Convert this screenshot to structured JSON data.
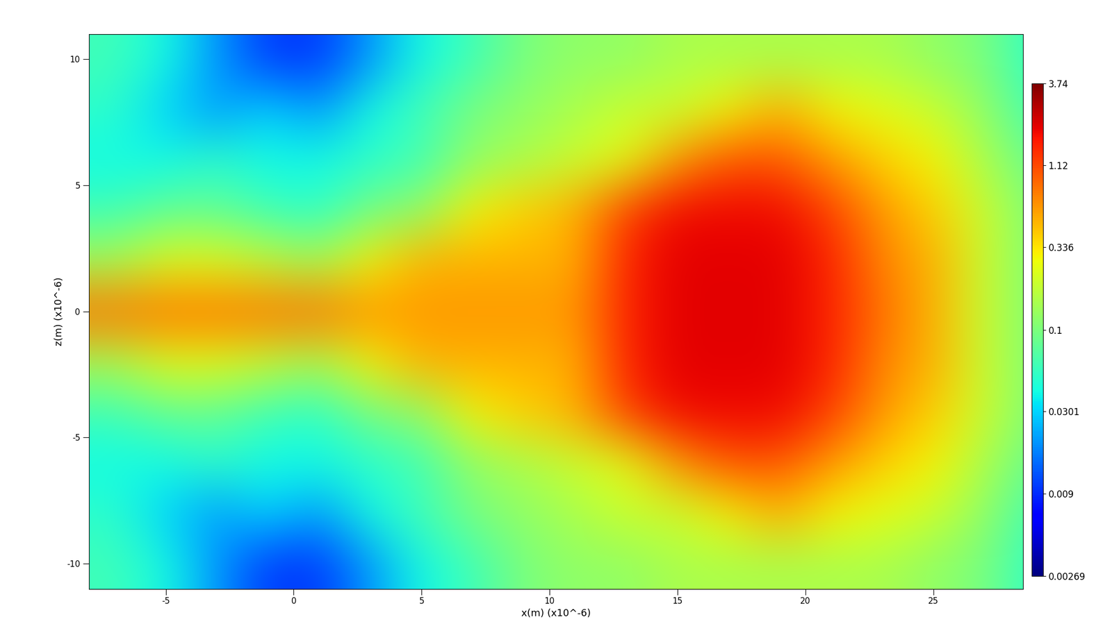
{
  "chart_data": {
    "type": "heatmap",
    "xlabel": "x(m) (x10^-6)",
    "ylabel": "z(m) (x10^-6)",
    "xlim": [
      -8,
      28.5
    ],
    "ylim": [
      -11,
      11
    ],
    "xticks": [
      -5,
      0,
      5,
      10,
      15,
      20,
      25
    ],
    "yticks": [
      -10,
      -5,
      0,
      5,
      10
    ],
    "x": [
      -7,
      -5,
      -3,
      -1,
      1,
      3,
      5,
      7,
      9,
      11,
      13,
      15,
      17,
      19,
      21,
      23,
      25,
      27,
      29
    ],
    "z": [
      -10,
      -8,
      -6,
      -4,
      -2,
      0,
      2,
      4,
      6,
      8,
      10
    ],
    "cells": [
      [
        0.06,
        0.04,
        0.02,
        0.01,
        0.01,
        0.02,
        0.04,
        0.06,
        0.1,
        0.12,
        0.12,
        0.15,
        0.15,
        0.15,
        0.15,
        0.15,
        0.12,
        0.1,
        0.05
      ],
      [
        0.05,
        0.03,
        0.02,
        0.03,
        0.02,
        0.04,
        0.06,
        0.1,
        0.12,
        0.15,
        0.2,
        0.2,
        0.3,
        0.5,
        0.3,
        0.25,
        0.2,
        0.12,
        0.06
      ],
      [
        0.04,
        0.04,
        0.05,
        0.04,
        0.04,
        0.05,
        0.06,
        0.12,
        0.15,
        0.2,
        0.25,
        0.6,
        1.0,
        1.0,
        0.6,
        0.4,
        0.3,
        0.15,
        0.08
      ],
      [
        0.06,
        0.08,
        0.08,
        0.06,
        0.05,
        0.1,
        0.12,
        0.3,
        0.4,
        0.5,
        1.2,
        1.8,
        1.8,
        1.8,
        1.2,
        0.6,
        0.4,
        0.2,
        0.1
      ],
      [
        0.15,
        0.25,
        0.25,
        0.2,
        0.15,
        0.3,
        0.5,
        0.5,
        0.5,
        0.5,
        1.5,
        2.0,
        2.0,
        2.0,
        1.5,
        0.7,
        0.5,
        0.2,
        0.1
      ],
      [
        0.8,
        0.8,
        0.8,
        0.8,
        0.8,
        0.6,
        0.6,
        0.6,
        0.6,
        0.6,
        1.5,
        2.0,
        2.0,
        2.0,
        1.5,
        0.8,
        0.5,
        0.2,
        0.1
      ],
      [
        0.15,
        0.25,
        0.25,
        0.2,
        0.15,
        0.3,
        0.5,
        0.5,
        0.5,
        0.5,
        1.5,
        2.0,
        2.0,
        2.0,
        1.5,
        0.7,
        0.5,
        0.2,
        0.1
      ],
      [
        0.06,
        0.08,
        0.08,
        0.06,
        0.05,
        0.1,
        0.12,
        0.3,
        0.4,
        0.5,
        1.2,
        1.8,
        1.8,
        1.8,
        1.2,
        0.6,
        0.4,
        0.2,
        0.1
      ],
      [
        0.04,
        0.04,
        0.05,
        0.04,
        0.04,
        0.05,
        0.06,
        0.12,
        0.15,
        0.2,
        0.25,
        0.6,
        1.0,
        1.0,
        0.6,
        0.4,
        0.3,
        0.15,
        0.08
      ],
      [
        0.05,
        0.03,
        0.02,
        0.03,
        0.02,
        0.04,
        0.06,
        0.1,
        0.12,
        0.15,
        0.2,
        0.2,
        0.3,
        0.5,
        0.3,
        0.25,
        0.2,
        0.12,
        0.06
      ],
      [
        0.06,
        0.04,
        0.02,
        0.01,
        0.01,
        0.02,
        0.04,
        0.06,
        0.1,
        0.12,
        0.12,
        0.15,
        0.15,
        0.15,
        0.15,
        0.15,
        0.12,
        0.1,
        0.05
      ]
    ],
    "colorbar": {
      "range": [
        0.00269,
        3.74
      ],
      "log": true,
      "ticks": [
        0.00269,
        0.009,
        0.0301,
        0.1,
        0.336,
        1.12,
        3.74
      ]
    }
  }
}
